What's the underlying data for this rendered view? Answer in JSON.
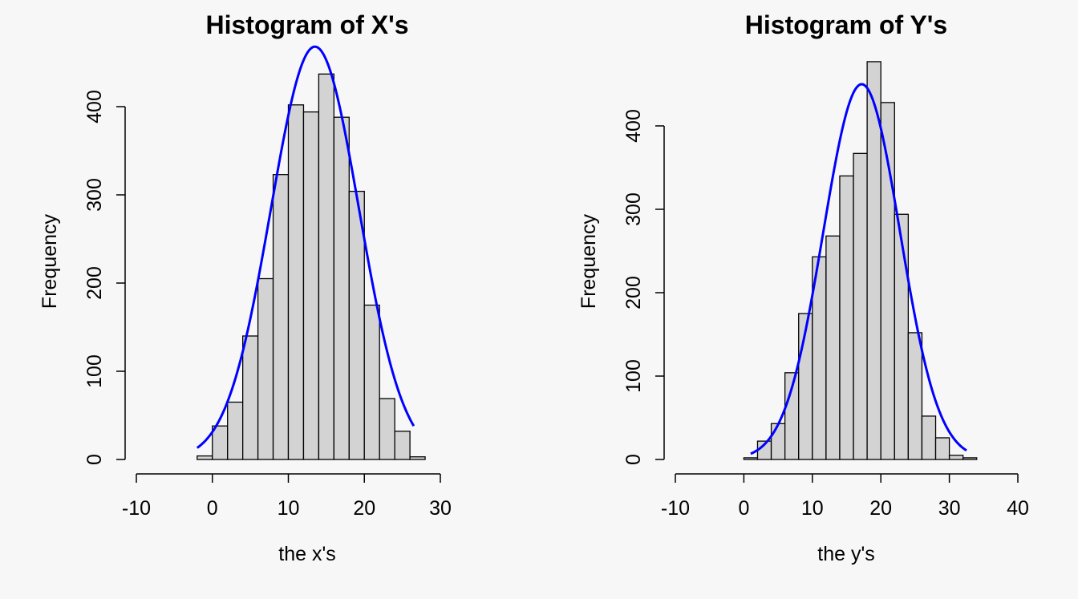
{
  "colors": {
    "background": "#f7f7f7",
    "bar_fill": "#d3d3d3",
    "bar_border": "#000000",
    "density_line": "#0000ff"
  },
  "chart_data": [
    {
      "type": "bar",
      "title": "Histogram of X's",
      "xlabel": "the x's",
      "ylabel": "Frequency",
      "xlim": [
        -10,
        30
      ],
      "ylim": [
        0,
        480
      ],
      "xticks": [
        "-10",
        "0",
        "10",
        "20",
        "30"
      ],
      "yticks": [
        "0",
        "100",
        "200",
        "300",
        "400"
      ],
      "bin_width": 2,
      "bin_start": -2,
      "values": [
        4,
        38,
        65,
        140,
        205,
        323,
        402,
        394,
        437,
        388,
        304,
        175,
        69,
        32,
        3
      ],
      "density": {
        "mean": 13.5,
        "sd": 5.8,
        "peak": 468,
        "x_range": [
          -2,
          26.5
        ]
      }
    },
    {
      "type": "bar",
      "title": "Histogram of Y's",
      "xlabel": "the y's",
      "ylabel": "Frequency",
      "xlim": [
        -10,
        40
      ],
      "ylim": [
        0,
        480
      ],
      "xticks": [
        "-10",
        "0",
        "10",
        "20",
        "30",
        "40"
      ],
      "yticks": [
        "0",
        "100",
        "200",
        "300",
        "400"
      ],
      "bin_width": 2,
      "bin_start": 0,
      "values": [
        2,
        22,
        43,
        104,
        175,
        243,
        268,
        340,
        367,
        477,
        428,
        294,
        152,
        52,
        26,
        5,
        2
      ],
      "density": {
        "mean": 17.2,
        "sd": 5.6,
        "peak": 450,
        "x_range": [
          1,
          32.5
        ]
      }
    }
  ]
}
